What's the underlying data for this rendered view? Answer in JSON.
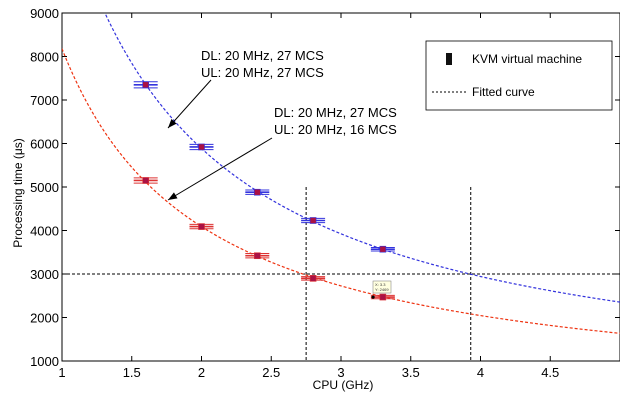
{
  "chart_data": {
    "type": "scatter",
    "xlabel": "CPU (GHz)",
    "ylabel": "Processing time (μs)",
    "xlim": [
      1,
      5
    ],
    "ylim": [
      1000,
      9000
    ],
    "xticks": [
      1,
      1.5,
      2,
      2.5,
      3,
      3.5,
      4,
      4.5
    ],
    "xtick_labels": [
      "1",
      "1.5",
      "2",
      "2.5",
      "3",
      "3.5",
      "4",
      "4.5"
    ],
    "yticks": [
      1000,
      2000,
      3000,
      4000,
      5000,
      6000,
      7000,
      8000,
      9000
    ],
    "ytick_labels": [
      "1000",
      "2000",
      "3000",
      "4000",
      "5000",
      "6000",
      "7000",
      "8000",
      "9000"
    ],
    "grid": false,
    "legend": {
      "position": "top-right",
      "entries": [
        "KVM virtual machine",
        "Fitted curve"
      ]
    },
    "series": [
      {
        "name": "DL: 20 MHz, 27 MCS / UL: 20 MHz, 27 MCS",
        "color": "#3333dd",
        "fit_color": "#3333dd",
        "x": [
          1.6,
          2.0,
          2.4,
          2.8,
          3.3
        ],
        "y": [
          7350,
          5920,
          4880,
          4230,
          3570
        ],
        "err_low": [
          7280,
          5860,
          4830,
          4180,
          3530
        ],
        "err_high": [
          7420,
          5980,
          4930,
          4280,
          3610
        ],
        "fit": {
          "a": 11770
        }
      },
      {
        "name": "DL: 20 MHz, 27 MCS / UL: 20 MHz, 16 MCS",
        "color": "#dd3333",
        "fit_color": "#ee3311",
        "x": [
          1.6,
          2.0,
          2.4,
          2.8,
          3.3
        ],
        "y": [
          5150,
          4090,
          3420,
          2900,
          2470
        ],
        "err_low": [
          5090,
          4040,
          3370,
          2860,
          2430
        ],
        "err_high": [
          5210,
          4140,
          3470,
          2940,
          2510
        ],
        "fit": {
          "a": 8180
        }
      }
    ],
    "reference_lines": {
      "horizontal": [
        3000
      ],
      "vertical": [
        2.75,
        3.93
      ]
    },
    "annotations": [
      {
        "lines": [
          "DL: 20 MHz, 27 MCS",
          "UL: 20 MHz, 27 MCS"
        ]
      },
      {
        "lines": [
          "DL: 20 MHz, 27 MCS",
          "UL: 20 MHz, 16 MCS"
        ]
      }
    ],
    "datatip": {
      "lines": [
        "X: 3.3",
        "Y: 2469"
      ]
    }
  }
}
